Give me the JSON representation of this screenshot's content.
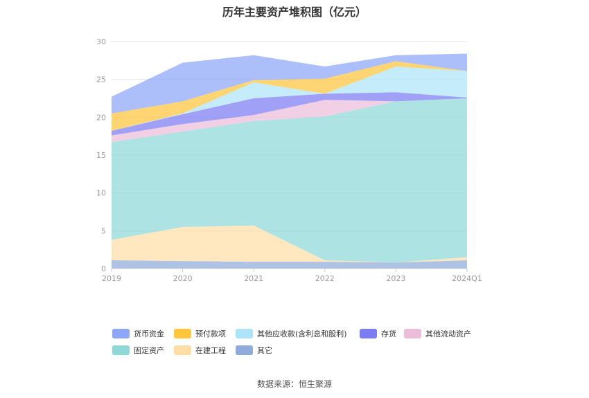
{
  "chart_data": {
    "type": "area",
    "stacked": true,
    "title": "历年主要资产堆积图（亿元）",
    "categories": [
      "2019",
      "2020",
      "2021",
      "2022",
      "2023",
      "2024Q1"
    ],
    "ylim": [
      0,
      30
    ],
    "yticks": [
      0,
      5,
      10,
      15,
      20,
      25,
      30
    ],
    "grid": true,
    "legend_position": "bottom",
    "series": [
      {
        "name": "其它",
        "color": "#8FABDB",
        "values": [
          1.1,
          1.0,
          0.9,
          0.9,
          0.8,
          1.1
        ]
      },
      {
        "name": "在建工程",
        "color": "#FFDEA6",
        "values": [
          2.7,
          4.5,
          4.8,
          0.2,
          0.0,
          0.4
        ]
      },
      {
        "name": "固定资产",
        "color": "#8ED8D8",
        "values": [
          12.9,
          12.6,
          13.8,
          19.0,
          21.3,
          21.0
        ]
      },
      {
        "name": "其他流动资产",
        "color": "#EBBDD9",
        "values": [
          0.9,
          1.0,
          0.8,
          2.2,
          0.0,
          0.0
        ]
      },
      {
        "name": "存货",
        "color": "#7B7CF2",
        "values": [
          0.6,
          1.3,
          2.2,
          0.8,
          1.2,
          0.1
        ]
      },
      {
        "name": "其他应收款(含利息和股利)",
        "color": "#ADE4FA",
        "values": [
          0.0,
          0.1,
          2.1,
          0.0,
          3.4,
          3.5
        ]
      },
      {
        "name": "预付款项",
        "color": "#FFC53D",
        "values": [
          2.3,
          1.6,
          0.3,
          2.0,
          0.7,
          0.0
        ]
      },
      {
        "name": "货币资金",
        "color": "#8CA6F8",
        "values": [
          2.2,
          5.1,
          3.3,
          1.6,
          0.8,
          2.3
        ]
      }
    ]
  },
  "legend": {
    "items": [
      "货币资金",
      "预付款项",
      "其他应收款(含利息和股利)",
      "存货",
      "其他流动资产",
      "固定资产",
      "在建工程",
      "其它"
    ]
  },
  "footer": {
    "source": "数据来源：恒生聚源"
  }
}
